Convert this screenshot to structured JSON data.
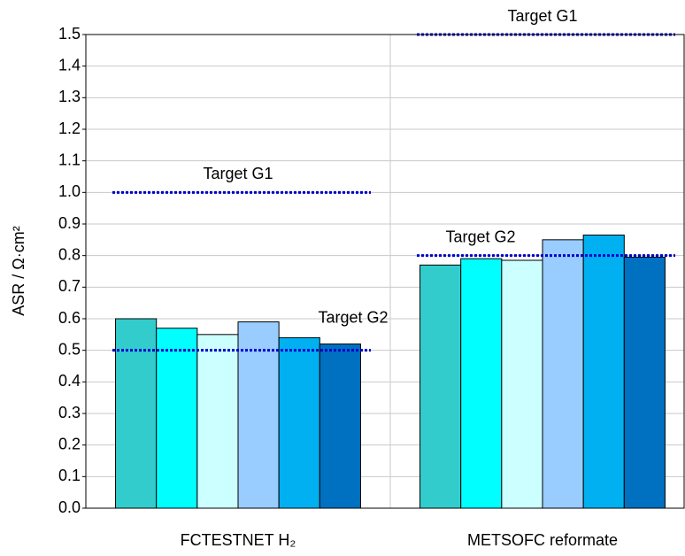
{
  "chart_data": {
    "type": "bar",
    "y_label": "ASR / Ω·cm²",
    "categories": [
      "FCTESTNET H₂",
      "METSOFC reformate"
    ],
    "series": [
      {
        "color": "#33cccc",
        "values": [
          0.6,
          0.77
        ]
      },
      {
        "color": "#00ffff",
        "values": [
          0.57,
          0.79
        ]
      },
      {
        "color": "#ccffff",
        "values": [
          0.55,
          0.785
        ]
      },
      {
        "color": "#99ccff",
        "values": [
          0.59,
          0.85
        ]
      },
      {
        "color": "#00b0f0",
        "values": [
          0.54,
          0.865
        ]
      },
      {
        "color": "#0070c0",
        "values": [
          0.52,
          0.795
        ]
      }
    ],
    "targets": [
      {
        "label": "Target G1",
        "value": 1.0,
        "category": 0
      },
      {
        "label": "Target G2",
        "value": 0.5,
        "category": 0
      },
      {
        "label": "Target G1",
        "value": 1.5,
        "category": 1
      },
      {
        "label": "Target G2",
        "value": 0.8,
        "category": 1
      }
    ],
    "target_color": "#0000cc",
    "ylim": [
      0,
      1.5
    ],
    "yticks": [
      {
        "value": 0,
        "label": "0.0"
      },
      0.1,
      0.2,
      0.3,
      0.4,
      0.5,
      0.6,
      0.7,
      0.8,
      0.9,
      {
        "value": 1,
        "label": "1.0"
      },
      1.1,
      1.2,
      1.3,
      1.4,
      1.5
    ],
    "grid": true
  }
}
